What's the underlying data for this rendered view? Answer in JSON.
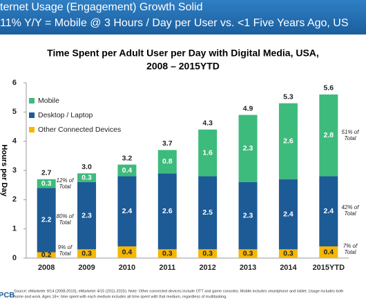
{
  "header": {
    "line1": "ternet Usage (Engagement) Growth Solid",
    "line2": "11% Y/Y = Mobile @ 3 Hours / Day per User vs. <1  Five Years Ago, US"
  },
  "chart_data": {
    "type": "stacked_bar",
    "title": "Time Spent per Adult User per Day with Digital Media, USA,",
    "subtitle": "2008 – 2015YTD",
    "y_label": "Hours per Day",
    "categories": [
      "2008",
      "2009",
      "2010",
      "2011",
      "2012",
      "2013",
      "2014",
      "2015YTD"
    ],
    "series": [
      {
        "name": "Other Connected Devices",
        "color": "#f5b700",
        "values": [
          0.2,
          0.3,
          0.4,
          0.3,
          0.3,
          0.3,
          0.3,
          0.4
        ]
      },
      {
        "name": "Desktop / Laptop",
        "color": "#1d5b97",
        "values": [
          2.2,
          2.3,
          2.4,
          2.6,
          2.5,
          2.3,
          2.4,
          2.4
        ]
      },
      {
        "name": "Mobile",
        "color": "#3dbb7c",
        "values": [
          0.3,
          0.3,
          0.4,
          0.8,
          1.6,
          2.3,
          2.6,
          2.8
        ]
      }
    ],
    "totals": {
      "values": [
        2.7,
        3.0,
        3.2,
        3.7,
        4.3,
        4.9,
        5.3,
        5.6
      ],
      "value_labels": [
        "2.7",
        "3.0",
        "3.2",
        "3.7",
        "4.3",
        "4.9",
        "5.3",
        "5.6"
      ]
    },
    "annotations": [
      [
        "12% of",
        "Total"
      ],
      [
        "80% of",
        "Total"
      ],
      [
        "9% of",
        "Total"
      ],
      [
        "51% of",
        "Total"
      ],
      [
        "42% of",
        "Total"
      ],
      [
        "7% of",
        "Total"
      ]
    ],
    "ylim": [
      0,
      6
    ],
    "yticks": [
      0,
      1,
      2,
      3,
      4,
      5,
      6
    ],
    "grid": false
  },
  "footer": {
    "logo": "PCB",
    "source1": "Source: eMarketer 9/14 (2008-2010), eMarketer 4/15 (2011-2015). Note: Other connected devices include OTT and game consoles. Mobile includes smartphone and tablet. Usage includes both",
    "source2": "home and work. Ages 18+; time spent with each medium includes all time spent with that medium, regardless of multitasking."
  }
}
